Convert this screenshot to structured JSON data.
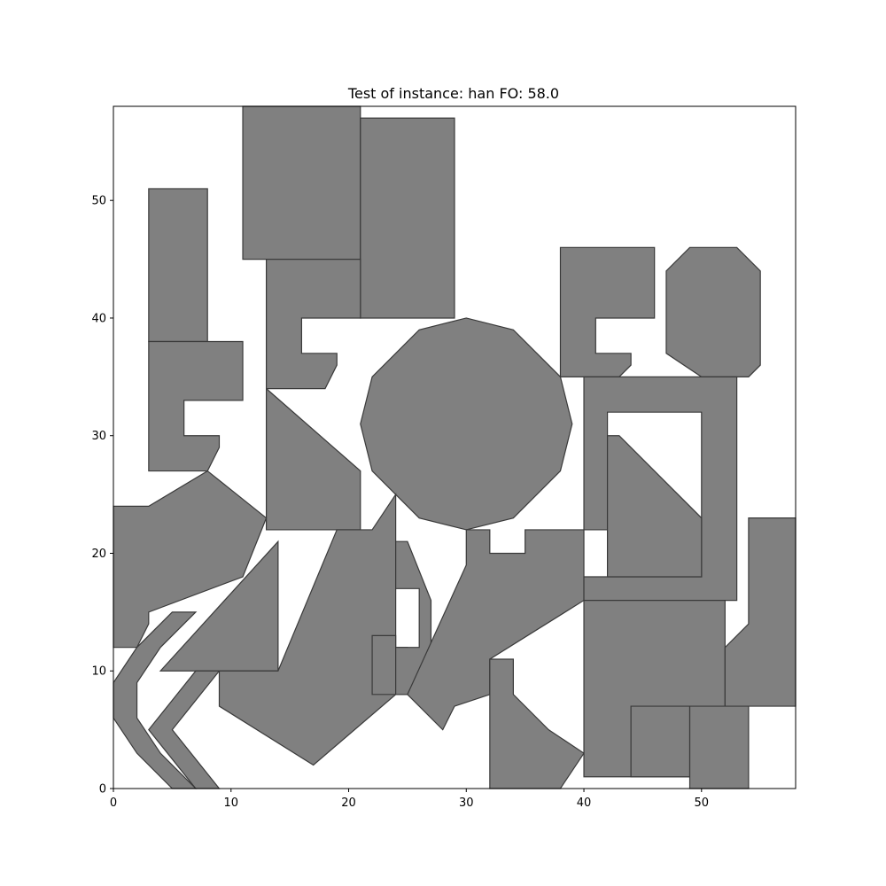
{
  "chart_data": {
    "type": "polygon_packing",
    "title": "Test of instance: han  FO: 58.0",
    "xlim": [
      0,
      58
    ],
    "ylim": [
      0,
      58
    ],
    "xticks": [
      0,
      10,
      20,
      30,
      40,
      50
    ],
    "yticks": [
      0,
      10,
      20,
      30,
      40,
      50
    ],
    "grid": false,
    "fill_color": "#808080",
    "edge_color": "#3a3a3a",
    "polygons": [
      {
        "name": "rect-top-left",
        "points": [
          [
            11,
            45
          ],
          [
            21,
            45
          ],
          [
            21,
            58
          ],
          [
            11,
            58
          ]
        ]
      },
      {
        "name": "rect-top-right",
        "points": [
          [
            21,
            40
          ],
          [
            29,
            40
          ],
          [
            29,
            57
          ],
          [
            21,
            57
          ]
        ]
      },
      {
        "name": "bar-left",
        "points": [
          [
            3,
            38
          ],
          [
            8,
            38
          ],
          [
            8,
            51
          ],
          [
            3,
            51
          ]
        ]
      },
      {
        "name": "c-shape-left",
        "points": [
          [
            3,
            27
          ],
          [
            8,
            27
          ],
          [
            9,
            29
          ],
          [
            9,
            30
          ],
          [
            6,
            30
          ],
          [
            6,
            33
          ],
          [
            11,
            33
          ],
          [
            11,
            38
          ],
          [
            3,
            38
          ]
        ]
      },
      {
        "name": "c-shape-middle",
        "points": [
          [
            13,
            34
          ],
          [
            18,
            34
          ],
          [
            19,
            36
          ],
          [
            19,
            37
          ],
          [
            16,
            37
          ],
          [
            16,
            40
          ],
          [
            21,
            40
          ],
          [
            21,
            45
          ],
          [
            13,
            45
          ]
        ]
      },
      {
        "name": "trapezoid-middle",
        "points": [
          [
            13,
            22
          ],
          [
            21,
            22
          ],
          [
            21,
            27
          ],
          [
            13,
            34
          ]
        ]
      },
      {
        "name": "dodecagon-center",
        "points": [
          [
            30,
            22
          ],
          [
            34,
            23
          ],
          [
            38,
            27
          ],
          [
            39,
            31
          ],
          [
            38,
            35
          ],
          [
            34,
            39
          ],
          [
            30,
            40
          ],
          [
            26,
            39
          ],
          [
            22,
            35
          ],
          [
            21,
            31
          ],
          [
            22,
            27
          ],
          [
            26,
            23
          ]
        ]
      },
      {
        "name": "pentagon-left",
        "points": [
          [
            0,
            12
          ],
          [
            2,
            12
          ],
          [
            3,
            14
          ],
          [
            3,
            15
          ],
          [
            11,
            18
          ],
          [
            13,
            23
          ],
          [
            8,
            27
          ],
          [
            3,
            24
          ],
          [
            0,
            24
          ]
        ]
      },
      {
        "name": "triangle-left",
        "points": [
          [
            4,
            10
          ],
          [
            14,
            10
          ],
          [
            14,
            21
          ]
        ]
      },
      {
        "name": "zigzag-outer",
        "points": [
          [
            0,
            6
          ],
          [
            2,
            3
          ],
          [
            5,
            0
          ],
          [
            7,
            0
          ],
          [
            4,
            3
          ],
          [
            2,
            6
          ],
          [
            2,
            9
          ],
          [
            4,
            12
          ],
          [
            7,
            15
          ],
          [
            5,
            15
          ],
          [
            2,
            12
          ],
          [
            0,
            9
          ]
        ]
      },
      {
        "name": "zigzag-inner",
        "points": [
          [
            3,
            5
          ],
          [
            7,
            0
          ],
          [
            9,
            0
          ],
          [
            5,
            5
          ],
          [
            9,
            10
          ],
          [
            7,
            10
          ]
        ]
      },
      {
        "name": "hexagon-lower",
        "points": [
          [
            9,
            7
          ],
          [
            17,
            2
          ],
          [
            24,
            8
          ],
          [
            24,
            25
          ],
          [
            22,
            22
          ],
          [
            19,
            22
          ],
          [
            14,
            10
          ],
          [
            9,
            10
          ]
        ]
      },
      {
        "name": "notch-piece-middle",
        "points": [
          [
            22,
            8
          ],
          [
            25,
            8
          ],
          [
            25,
            12
          ],
          [
            24,
            12
          ],
          [
            24,
            13
          ],
          [
            22,
            13
          ]
        ]
      },
      {
        "name": "bracket-middle",
        "points": [
          [
            24,
            8
          ],
          [
            25,
            8
          ],
          [
            27,
            12
          ],
          [
            27,
            16
          ],
          [
            25,
            21
          ],
          [
            24,
            21
          ],
          [
            24,
            17
          ],
          [
            26,
            17
          ],
          [
            26,
            12
          ],
          [
            24,
            12
          ]
        ]
      },
      {
        "name": "arrow-piece-center",
        "points": [
          [
            25,
            8
          ],
          [
            28,
            5
          ],
          [
            29,
            7
          ],
          [
            32,
            8
          ],
          [
            32,
            11
          ],
          [
            40,
            16
          ],
          [
            40,
            22
          ],
          [
            35,
            22
          ],
          [
            35,
            20
          ],
          [
            32,
            20
          ],
          [
            32,
            22
          ],
          [
            30,
            22
          ],
          [
            30,
            19
          ]
        ]
      },
      {
        "name": "pentagon-bottom",
        "points": [
          [
            32,
            0
          ],
          [
            38,
            0
          ],
          [
            40,
            3
          ],
          [
            37,
            5
          ],
          [
            34,
            8
          ],
          [
            34,
            11
          ],
          [
            32,
            11
          ]
        ]
      },
      {
        "name": "c-shape-right",
        "points": [
          [
            38,
            35
          ],
          [
            43,
            35
          ],
          [
            44,
            36
          ],
          [
            44,
            37
          ],
          [
            41,
            37
          ],
          [
            41,
            40
          ],
          [
            46,
            40
          ],
          [
            46,
            46
          ],
          [
            38,
            46
          ]
        ]
      },
      {
        "name": "octagon-right",
        "points": [
          [
            50,
            35
          ],
          [
            54,
            35
          ],
          [
            55,
            36
          ],
          [
            55,
            44
          ],
          [
            53,
            46
          ],
          [
            49,
            46
          ],
          [
            47,
            44
          ],
          [
            47,
            37
          ]
        ]
      },
      {
        "name": "frame-right",
        "points": [
          [
            40,
            16
          ],
          [
            53,
            16
          ],
          [
            53,
            35
          ],
          [
            40,
            35
          ],
          [
            40,
            22
          ],
          [
            42,
            22
          ],
          [
            42,
            32
          ],
          [
            50,
            32
          ],
          [
            50,
            18
          ],
          [
            40,
            18
          ]
        ]
      },
      {
        "name": "trapezoid-right",
        "points": [
          [
            42,
            18
          ],
          [
            50,
            18
          ],
          [
            50,
            23
          ],
          [
            43,
            30
          ],
          [
            42,
            30
          ]
        ]
      },
      {
        "name": "rect-lower-right",
        "points": [
          [
            40,
            1
          ],
          [
            52,
            1
          ],
          [
            52,
            16
          ],
          [
            40,
            16
          ]
        ]
      },
      {
        "name": "bar-far-right",
        "points": [
          [
            52,
            7
          ],
          [
            58,
            7
          ],
          [
            58,
            23
          ],
          [
            54,
            23
          ],
          [
            54,
            14
          ],
          [
            52,
            12
          ]
        ]
      },
      {
        "name": "square-bottom-right-a",
        "points": [
          [
            44,
            1
          ],
          [
            49,
            1
          ],
          [
            49,
            7
          ],
          [
            44,
            7
          ]
        ]
      },
      {
        "name": "square-bottom-right-b",
        "points": [
          [
            49,
            0
          ],
          [
            54,
            0
          ],
          [
            54,
            7
          ],
          [
            49,
            7
          ]
        ]
      }
    ]
  }
}
